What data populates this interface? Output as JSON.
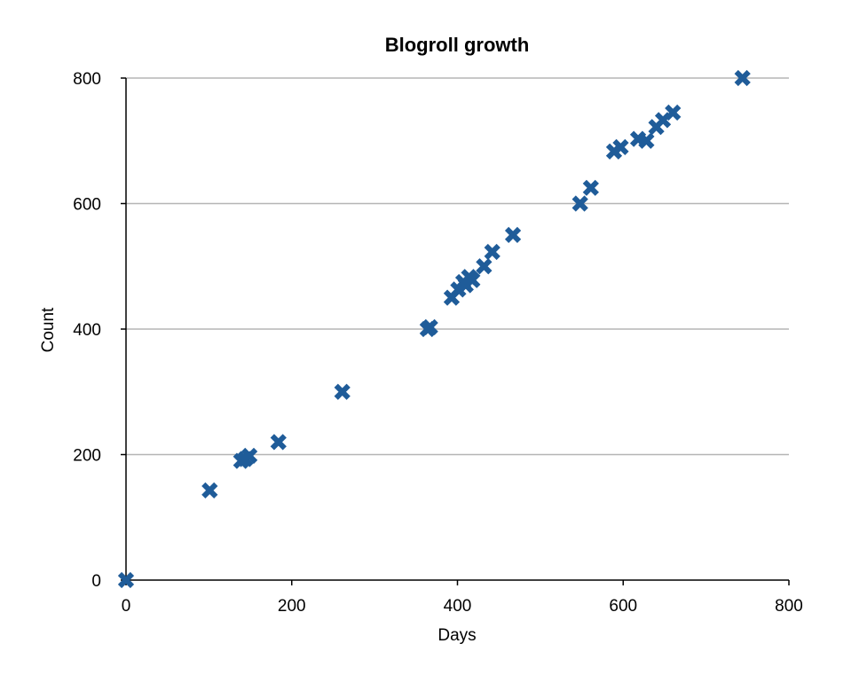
{
  "chart_data": {
    "type": "scatter",
    "title": "Blogroll growth",
    "xlabel": "Days",
    "ylabel": "Count",
    "xlim": [
      0,
      800
    ],
    "ylim": [
      0,
      800
    ],
    "xticks": [
      "0",
      "200",
      "400",
      "600",
      "800"
    ],
    "yticks": [
      "0",
      "200",
      "400",
      "600",
      "800"
    ],
    "grid": "horizontal",
    "series": [
      {
        "color": "#1f5c99",
        "marker": "x-cross",
        "points": [
          {
            "x": 0,
            "y": 0
          },
          {
            "x": 101,
            "y": 143
          },
          {
            "x": 139,
            "y": 190
          },
          {
            "x": 144,
            "y": 193
          },
          {
            "x": 149,
            "y": 198
          },
          {
            "x": 184,
            "y": 220
          },
          {
            "x": 261,
            "y": 300
          },
          {
            "x": 364,
            "y": 400
          },
          {
            "x": 367,
            "y": 403
          },
          {
            "x": 393,
            "y": 450
          },
          {
            "x": 401,
            "y": 463
          },
          {
            "x": 407,
            "y": 475
          },
          {
            "x": 410,
            "y": 470
          },
          {
            "x": 414,
            "y": 483
          },
          {
            "x": 418,
            "y": 478
          },
          {
            "x": 432,
            "y": 500
          },
          {
            "x": 442,
            "y": 523
          },
          {
            "x": 467,
            "y": 550
          },
          {
            "x": 548,
            "y": 600
          },
          {
            "x": 561,
            "y": 625
          },
          {
            "x": 589,
            "y": 683
          },
          {
            "x": 597,
            "y": 690
          },
          {
            "x": 618,
            "y": 703
          },
          {
            "x": 628,
            "y": 700
          },
          {
            "x": 640,
            "y": 722
          },
          {
            "x": 648,
            "y": 733
          },
          {
            "x": 660,
            "y": 745
          },
          {
            "x": 744,
            "y": 800
          }
        ]
      }
    ]
  }
}
